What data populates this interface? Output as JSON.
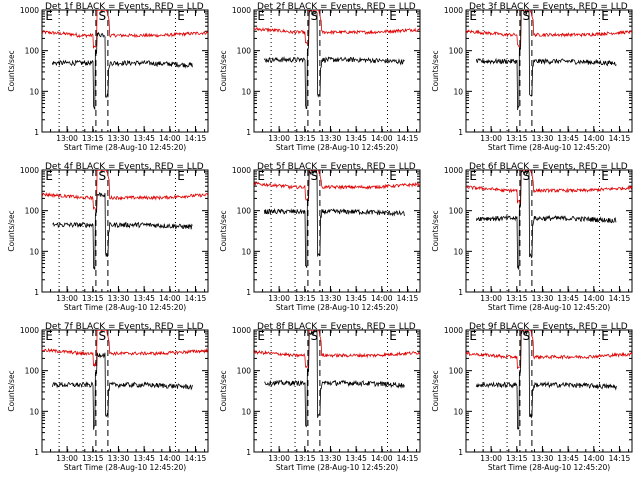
{
  "chart_data": [
    {
      "type": "line",
      "title": "Det 1f BLACK = Events, RED = LLD",
      "xlabel": "Start Time (28-Aug-10 12:45:20)",
      "ylabel": "Counts/sec",
      "ylim": [
        1,
        1000
      ],
      "yscale": "log",
      "xticks": [
        "13:00",
        "13:15",
        "13:30",
        "13:45",
        "14:00",
        "14:15"
      ],
      "yticks": [
        "1",
        "10",
        "100",
        "1000"
      ],
      "flags": [
        "E",
        "S",
        "E"
      ],
      "series": [
        {
          "color": "#e00000",
          "level": 250,
          "variant": "A"
        },
        {
          "color": "#000000",
          "level": 50,
          "variant": "A"
        }
      ]
    },
    {
      "type": "line",
      "title": "Det 2f BLACK = Events, RED = LLD",
      "xlabel": "Start Time (28-Aug-10 12:45:20)",
      "ylabel": "Counts/sec",
      "ylim": [
        1,
        1000
      ],
      "yscale": "log",
      "xticks": [
        "13:00",
        "13:15",
        "13:30",
        "13:45",
        "14:00",
        "14:15"
      ],
      "yticks": [
        "1",
        "10",
        "100",
        "1000"
      ],
      "flags": [
        "E",
        "S",
        "E"
      ],
      "series": [
        {
          "color": "#e00000",
          "level": 300,
          "variant": "B"
        },
        {
          "color": "#000000",
          "level": 60,
          "variant": "B"
        }
      ]
    },
    {
      "type": "line",
      "title": "Det 3f BLACK = Events, RED = LLD",
      "xlabel": "Start Time (28-Aug-10 12:45:20)",
      "ylabel": "Counts/sec",
      "ylim": [
        1,
        1000
      ],
      "yscale": "log",
      "xticks": [
        "13:00",
        "13:15",
        "13:30",
        "13:45",
        "14:00",
        "14:15"
      ],
      "yticks": [
        "1",
        "10",
        "100",
        "1000"
      ],
      "flags": [
        "E",
        "S",
        "E"
      ],
      "series": [
        {
          "color": "#e00000",
          "level": 260,
          "variant": "B"
        },
        {
          "color": "#000000",
          "level": 55,
          "variant": "B"
        }
      ]
    },
    {
      "type": "line",
      "title": "Det 4f BLACK = Events, RED = LLD",
      "xlabel": "Start Time (28-Aug-10 12:45:20)",
      "ylabel": "Counts/sec",
      "ylim": [
        1,
        1000
      ],
      "yscale": "log",
      "xticks": [
        "13:00",
        "13:15",
        "13:30",
        "13:45",
        "14:00",
        "14:15"
      ],
      "yticks": [
        "1",
        "10",
        "100",
        "1000"
      ],
      "flags": [
        "E",
        "S",
        "E"
      ],
      "series": [
        {
          "color": "#e00000",
          "level": 220,
          "variant": "A"
        },
        {
          "color": "#000000",
          "level": 45,
          "variant": "A"
        }
      ]
    },
    {
      "type": "line",
      "title": "Det 5f BLACK = Events, RED = LLD",
      "xlabel": "Start Time (28-Aug-10 12:45:20)",
      "ylabel": "Counts/sec",
      "ylim": [
        1,
        1000
      ],
      "yscale": "log",
      "xticks": [
        "13:00",
        "13:15",
        "13:30",
        "13:45",
        "14:00",
        "14:15"
      ],
      "yticks": [
        "1",
        "10",
        "100",
        "1000"
      ],
      "flags": [
        "E",
        "S",
        "E"
      ],
      "series": [
        {
          "color": "#e00000",
          "level": 400,
          "variant": "B"
        },
        {
          "color": "#000000",
          "level": 95,
          "variant": "B"
        }
      ]
    },
    {
      "type": "line",
      "title": "Det 6f BLACK = Events, RED = LLD",
      "xlabel": "Start Time (28-Aug-10 12:45:20)",
      "ylabel": "Counts/sec",
      "ylim": [
        1,
        1000
      ],
      "yscale": "log",
      "xticks": [
        "13:00",
        "13:15",
        "13:30",
        "13:45",
        "14:00",
        "14:15"
      ],
      "yticks": [
        "1",
        "10",
        "100",
        "1000"
      ],
      "flags": [
        "E",
        "S",
        "E"
      ],
      "series": [
        {
          "color": "#e00000",
          "level": 330,
          "variant": "B"
        },
        {
          "color": "#000000",
          "level": 65,
          "variant": "B"
        }
      ]
    },
    {
      "type": "line",
      "title": "Det 7f BLACK = Events, RED = LLD",
      "xlabel": "Start Time (28-Aug-10 12:45:20)",
      "ylabel": "Counts/sec",
      "ylim": [
        1,
        1000
      ],
      "yscale": "log",
      "xticks": [
        "13:00",
        "13:15",
        "13:30",
        "13:45",
        "14:00",
        "14:15"
      ],
      "yticks": [
        "1",
        "10",
        "100",
        "1000"
      ],
      "flags": [
        "E",
        "S",
        "E"
      ],
      "series": [
        {
          "color": "#e00000",
          "level": 280,
          "variant": "A"
        },
        {
          "color": "#000000",
          "level": 45,
          "variant": "A"
        }
      ]
    },
    {
      "type": "line",
      "title": "Det 8f BLACK = Events, RED = LLD",
      "xlabel": "Start Time (28-Aug-10 12:45:20)",
      "ylabel": "Counts/sec",
      "ylim": [
        1,
        1000
      ],
      "yscale": "log",
      "xticks": [
        "13:00",
        "13:15",
        "13:30",
        "13:45",
        "14:00",
        "14:15"
      ],
      "yticks": [
        "1",
        "10",
        "100",
        "1000"
      ],
      "flags": [
        "E",
        "S",
        "E"
      ],
      "series": [
        {
          "color": "#e00000",
          "level": 250,
          "variant": "B"
        },
        {
          "color": "#000000",
          "level": 50,
          "variant": "B"
        }
      ]
    },
    {
      "type": "line",
      "title": "Det 9f BLACK = Events, RED = LLD",
      "xlabel": "Start Time (28-Aug-10 12:45:20)",
      "ylabel": "Counts/sec",
      "ylim": [
        1,
        1000
      ],
      "yscale": "log",
      "xticks": [
        "13:00",
        "13:15",
        "13:30",
        "13:45",
        "14:00",
        "14:15"
      ],
      "yticks": [
        "1",
        "10",
        "100",
        "1000"
      ],
      "flags": [
        "E",
        "S",
        "E"
      ],
      "series": [
        {
          "color": "#e00000",
          "level": 230,
          "variant": "B"
        },
        {
          "color": "#000000",
          "level": 45,
          "variant": "B"
        }
      ]
    }
  ]
}
